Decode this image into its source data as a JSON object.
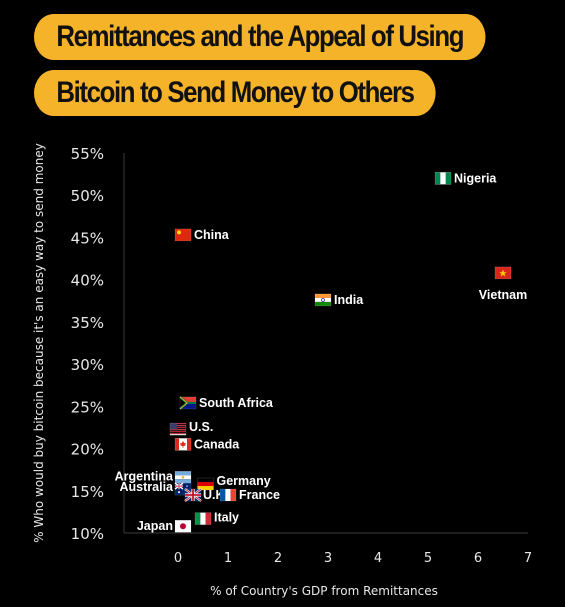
{
  "title": {
    "line1": "Remittances and the Appeal of Using",
    "line2": "Bitcoin to Send Money to Others"
  },
  "colors": {
    "background": "#000000",
    "title_pill": "#f5b32a",
    "axis": "#3a3a3a",
    "text": "#e8e8e8"
  },
  "chart_data": {
    "type": "scatter",
    "title": "Remittances and the Appeal of Using Bitcoin to Send Money to Others",
    "xlabel": "% of Country's GDP from Remittances",
    "ylabel": "% Who would buy bitcoin because it's an easy way to send money",
    "xlim": [
      -1.1,
      7
    ],
    "ylim": [
      10,
      55
    ],
    "x_ticks": [
      "0",
      "1",
      "2",
      "3",
      "4",
      "5",
      "6",
      "7"
    ],
    "y_ticks": [
      "10%",
      "15%",
      "20%",
      "25%",
      "30%",
      "35%",
      "40%",
      "45%",
      "50%",
      "55%"
    ],
    "grid": false,
    "points": [
      {
        "label": "Nigeria",
        "x": 5.3,
        "y": 52,
        "icon": "nigeria-flag-icon"
      },
      {
        "label": "China",
        "x": 0.1,
        "y": 45.3,
        "icon": "china-flag-icon"
      },
      {
        "label": "Vietnam",
        "x": 6.5,
        "y": 40.8,
        "icon": "vietnam-flag-icon"
      },
      {
        "label": "India",
        "x": 2.9,
        "y": 37.6,
        "icon": "india-flag-icon"
      },
      {
        "label": "South Africa",
        "x": 0.2,
        "y": 25.4,
        "icon": "south-africa-flag-icon"
      },
      {
        "label": "U.S.",
        "x": 0.0,
        "y": 22.3,
        "icon": "us-flag-icon"
      },
      {
        "label": "Canada",
        "x": 0.1,
        "y": 20.5,
        "icon": "canada-flag-icon"
      },
      {
        "label": "Argentina",
        "x": 0.1,
        "y": 16.6,
        "icon": "argentina-flag-icon"
      },
      {
        "label": "Germany",
        "x": 0.55,
        "y": 15.8,
        "icon": "germany-flag-icon"
      },
      {
        "label": "Australia",
        "x": 0.1,
        "y": 15.2,
        "icon": "australia-flag-icon"
      },
      {
        "label": "U.K.",
        "x": 0.3,
        "y": 14.5,
        "icon": "uk-flag-icon"
      },
      {
        "label": "France",
        "x": 1.0,
        "y": 14.5,
        "icon": "france-flag-icon"
      },
      {
        "label": "Italy",
        "x": 0.5,
        "y": 11.7,
        "icon": "italy-flag-icon"
      },
      {
        "label": "Japan",
        "x": 0.1,
        "y": 10.8,
        "icon": "japan-flag-icon"
      }
    ]
  }
}
